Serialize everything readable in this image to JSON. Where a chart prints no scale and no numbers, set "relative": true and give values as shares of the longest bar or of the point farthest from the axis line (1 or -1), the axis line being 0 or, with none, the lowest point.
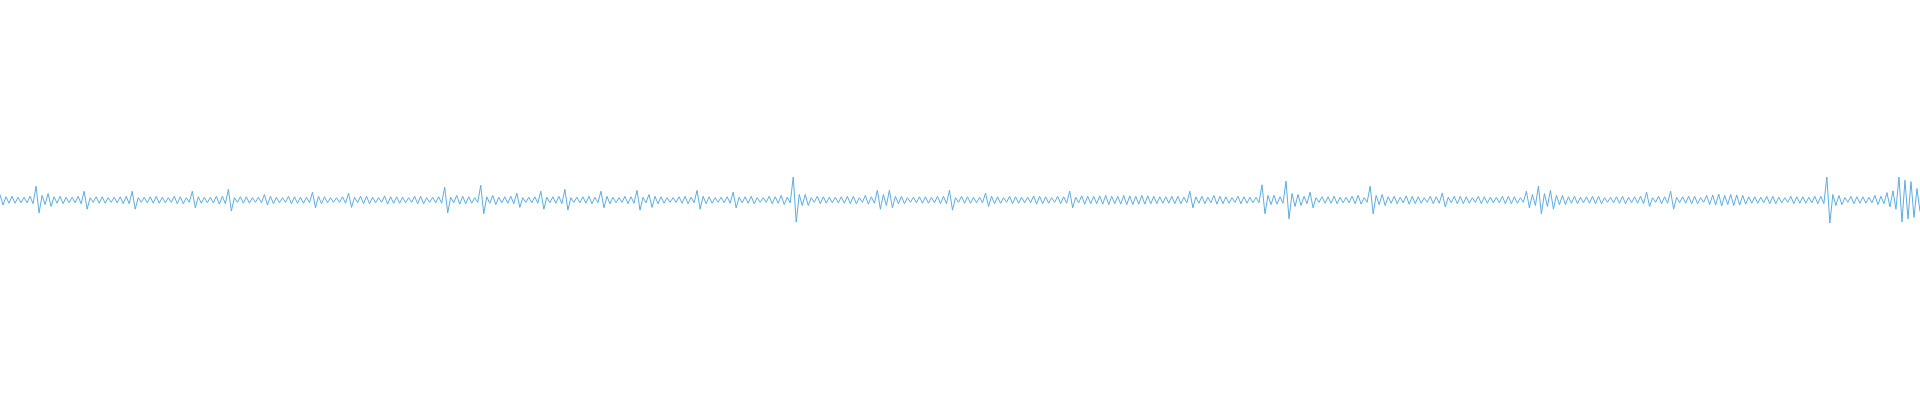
{
  "chart_data": {
    "type": "line",
    "relative": true,
    "color": "#5dade2",
    "categories": [
      null,
      null,
      null,
      null,
      null,
      null,
      null,
      null,
      null,
      null,
      null,
      null,
      null,
      null,
      null,
      null,
      null,
      null,
      null,
      null,
      null,
      null,
      null,
      null,
      null,
      null,
      null,
      null,
      null,
      null,
      null,
      null,
      null,
      null,
      null,
      null,
      null,
      null,
      null,
      null,
      null,
      null,
      null,
      null,
      null,
      null,
      null,
      null,
      null,
      null,
      null,
      null,
      null,
      null,
      null,
      null,
      null,
      null,
      null,
      null,
      null,
      null,
      null,
      null,
      null,
      null,
      null,
      null,
      null,
      null,
      null,
      null,
      null,
      null,
      null,
      null,
      null,
      null,
      null,
      null,
      null,
      null,
      null,
      null,
      null,
      null,
      null,
      null,
      null,
      null,
      null,
      null,
      null,
      null,
      null,
      null,
      null,
      null,
      null,
      null,
      null,
      null,
      null,
      null,
      null,
      null,
      null,
      null,
      null,
      null,
      null,
      null,
      null,
      null,
      null,
      null,
      null,
      null,
      null,
      null,
      null,
      null,
      null,
      null,
      null,
      null,
      null,
      null,
      null,
      null,
      null,
      null,
      null,
      null,
      null,
      null,
      null,
      null,
      null,
      null,
      null,
      null,
      null,
      null,
      null,
      null,
      null,
      null,
      null,
      null,
      null,
      null,
      null,
      null,
      null,
      null,
      null,
      null,
      null,
      null,
      null,
      null,
      null,
      null,
      null,
      null,
      null,
      null,
      null,
      null,
      null,
      null,
      null,
      null,
      null,
      null,
      null,
      null,
      null,
      null,
      null,
      null,
      null,
      null,
      null,
      null,
      null,
      null,
      null,
      null,
      null,
      null,
      null,
      null,
      null,
      null,
      null,
      null,
      null,
      null,
      null,
      null,
      null,
      null,
      null,
      null,
      null,
      null,
      null,
      null,
      null,
      null,
      null,
      null,
      null,
      null,
      null,
      null,
      null,
      null,
      null,
      null,
      null,
      null,
      null,
      null,
      null,
      null,
      null,
      null,
      null,
      null,
      null,
      null,
      null,
      null,
      null,
      null,
      null,
      null,
      null,
      null,
      null,
      null,
      null,
      null,
      null,
      null,
      null,
      null,
      null,
      null,
      null,
      null,
      null,
      null,
      null,
      null,
      null,
      null,
      null,
      null,
      null,
      null,
      null,
      null,
      null,
      null,
      null,
      null,
      null,
      null,
      null,
      null,
      null,
      null,
      null,
      null,
      null,
      null,
      null,
      null,
      null,
      null,
      null,
      null,
      null,
      null,
      null,
      null,
      null,
      null,
      null,
      null,
      null,
      null,
      null,
      null,
      null,
      null,
      null,
      null,
      null,
      null,
      null,
      null,
      null,
      null,
      null,
      null,
      null,
      null,
      null,
      null,
      null,
      null,
      null,
      null,
      null,
      null,
      null,
      null,
      null,
      null,
      null,
      null,
      null,
      null,
      null,
      null,
      null,
      null,
      null,
      null,
      null,
      null,
      null,
      null,
      null,
      null,
      null,
      null,
      null,
      null,
      null,
      null,
      null,
      null,
      null,
      null,
      null,
      null,
      null,
      null,
      null,
      null,
      null,
      null,
      null,
      null,
      null,
      null,
      null,
      null,
      null,
      null,
      null,
      null,
      null,
      null,
      null,
      null,
      null,
      null,
      null,
      null,
      null,
      null,
      null,
      null,
      null,
      null,
      null,
      null,
      null,
      null,
      null,
      null,
      null,
      null,
      null,
      null,
      null,
      null,
      null,
      null,
      null,
      null,
      null,
      null,
      null,
      null,
      null,
      null,
      null,
      null,
      null,
      null,
      null,
      null,
      null,
      null,
      null,
      null,
      null,
      null,
      null,
      null,
      null,
      null,
      null,
      null,
      null,
      null,
      null,
      null,
      null,
      null,
      null,
      null,
      null,
      null,
      null,
      null,
      null,
      null,
      null,
      null,
      null,
      null,
      null,
      null,
      null,
      null,
      null,
      null,
      null,
      null,
      null,
      null,
      null,
      null,
      null,
      null,
      null,
      null,
      null,
      null,
      null,
      null,
      null,
      null,
      null,
      null,
      null,
      null,
      null,
      null,
      null,
      null,
      null,
      null,
      null,
      null,
      null,
      null,
      null,
      null,
      null,
      null,
      null,
      null,
      null,
      null,
      null,
      null,
      null,
      null,
      null,
      null,
      null,
      null,
      null,
      null,
      null,
      null,
      null,
      null,
      null,
      null,
      null,
      null,
      null,
      null,
      null,
      null,
      null,
      null,
      null,
      null,
      null,
      null,
      null,
      null,
      null,
      null,
      null,
      null,
      null,
      null,
      null,
      null,
      null,
      null,
      null,
      null,
      null,
      null,
      null,
      null,
      null,
      null,
      null,
      null,
      null,
      null,
      null,
      null,
      null,
      null,
      null,
      null,
      null,
      null,
      null,
      null,
      null,
      null,
      null,
      null,
      null,
      null,
      null,
      null,
      null,
      null,
      null,
      null,
      null,
      null,
      null,
      null,
      null,
      null,
      null,
      null,
      null,
      null,
      null,
      null,
      null,
      null,
      null,
      null,
      null,
      null,
      null,
      null,
      null,
      null,
      null,
      null,
      null,
      null,
      null,
      null,
      null,
      null,
      null,
      null,
      null,
      null,
      null,
      null,
      null,
      null,
      null,
      null,
      null,
      null,
      null,
      null,
      null,
      null,
      null,
      null,
      null,
      null,
      null,
      null,
      null,
      null,
      null,
      null,
      null,
      null,
      null,
      null,
      null,
      null,
      null,
      null,
      null,
      null,
      null,
      null,
      null,
      null,
      null,
      null,
      null,
      null,
      null,
      null,
      null,
      null,
      null,
      null,
      null,
      null
    ],
    "values": [
      0.62,
      0.39,
      0.57,
      0.43,
      0.58,
      0.43,
      0.56,
      0.44,
      0.56,
      0.44,
      0.58,
      0.42,
      0.8,
      0.22,
      0.6,
      0.4,
      0.64,
      0.36,
      0.57,
      0.43,
      0.58,
      0.42,
      0.56,
      0.44,
      0.56,
      0.44,
      0.58,
      0.42,
      0.69,
      0.3,
      0.55,
      0.45,
      0.57,
      0.43,
      0.57,
      0.43,
      0.55,
      0.45,
      0.56,
      0.44,
      0.57,
      0.42,
      0.58,
      0.42,
      0.69,
      0.3,
      0.55,
      0.45,
      0.56,
      0.44,
      0.57,
      0.43,
      0.58,
      0.43,
      0.56,
      0.44,
      0.55,
      0.45,
      0.58,
      0.42,
      0.57,
      0.42,
      0.55,
      0.45,
      0.69,
      0.33,
      0.57,
      0.43,
      0.56,
      0.44,
      0.56,
      0.44,
      0.58,
      0.41,
      0.58,
      0.42,
      0.73,
      0.26,
      0.55,
      0.45,
      0.57,
      0.43,
      0.57,
      0.43,
      0.55,
      0.45,
      0.56,
      0.44,
      0.62,
      0.39,
      0.58,
      0.42,
      0.56,
      0.44,
      0.55,
      0.45,
      0.58,
      0.42,
      0.57,
      0.43,
      0.56,
      0.43,
      0.56,
      0.44,
      0.67,
      0.33,
      0.58,
      0.42,
      0.57,
      0.44,
      0.55,
      0.45,
      0.55,
      0.45,
      0.57,
      0.43,
      0.65,
      0.34,
      0.56,
      0.44,
      0.58,
      0.42,
      0.58,
      0.42,
      0.56,
      0.44,
      0.55,
      0.45,
      0.59,
      0.41,
      0.57,
      0.43,
      0.57,
      0.43,
      0.56,
      0.44,
      0.55,
      0.45,
      0.58,
      0.42,
      0.58,
      0.42,
      0.55,
      0.45,
      0.56,
      0.44,
      0.57,
      0.43,
      0.78,
      0.22,
      0.56,
      0.44,
      0.6,
      0.41,
      0.58,
      0.42,
      0.57,
      0.43,
      0.55,
      0.45,
      0.82,
      0.2,
      0.57,
      0.43,
      0.6,
      0.4,
      0.56,
      0.44,
      0.57,
      0.43,
      0.58,
      0.42,
      0.65,
      0.34,
      0.55,
      0.45,
      0.56,
      0.44,
      0.57,
      0.43,
      0.69,
      0.3,
      0.56,
      0.44,
      0.57,
      0.43,
      0.58,
      0.42,
      0.73,
      0.28,
      0.55,
      0.45,
      0.56,
      0.44,
      0.57,
      0.43,
      0.58,
      0.42,
      0.56,
      0.44,
      0.69,
      0.33,
      0.58,
      0.42,
      0.56,
      0.44,
      0.55,
      0.45,
      0.58,
      0.42,
      0.57,
      0.43,
      0.71,
      0.28,
      0.56,
      0.44,
      0.62,
      0.34,
      0.58,
      0.42,
      0.57,
      0.43,
      0.55,
      0.45,
      0.55,
      0.45,
      0.57,
      0.43,
      0.58,
      0.42,
      0.56,
      0.44,
      0.71,
      0.3,
      0.58,
      0.42,
      0.57,
      0.43,
      0.55,
      0.45,
      0.56,
      0.44,
      0.57,
      0.43,
      0.67,
      0.33,
      0.56,
      0.44,
      0.57,
      0.43,
      0.58,
      0.42,
      0.55,
      0.45,
      0.55,
      0.45,
      0.58,
      0.42,
      0.57,
      0.43,
      0.6,
      0.4,
      0.56,
      0.44,
      1,
      0.02,
      0.62,
      0.38,
      0.62,
      0.38,
      0.55,
      0.45,
      0.58,
      0.42,
      0.57,
      0.43,
      0.56,
      0.44,
      0.56,
      0.44,
      0.57,
      0.43,
      0.58,
      0.42,
      0.58,
      0.42,
      0.55,
      0.45,
      0.6,
      0.41,
      0.57,
      0.43,
      0.71,
      0.3,
      0.62,
      0.38,
      0.71,
      0.33,
      0.58,
      0.42,
      0.58,
      0.42,
      0.55,
      0.45,
      0.56,
      0.44,
      0.57,
      0.43,
      0.57,
      0.43,
      0.56,
      0.44,
      0.58,
      0.42,
      0.58,
      0.42,
      0.71,
      0.28,
      0.55,
      0.45,
      0.58,
      0.43,
      0.57,
      0.43,
      0.56,
      0.44,
      0.56,
      0.44,
      0.65,
      0.36,
      0.58,
      0.42,
      0.57,
      0.43,
      0.55,
      0.45,
      0.58,
      0.42,
      0.57,
      0.43,
      0.56,
      0.44,
      0.56,
      0.44,
      0.59,
      0.41,
      0.58,
      0.42,
      0.57,
      0.43,
      0.55,
      0.45,
      0.58,
      0.42,
      0.57,
      0.43,
      0.69,
      0.33,
      0.56,
      0.44,
      0.59,
      0.41,
      0.58,
      0.42,
      0.58,
      0.42,
      0.59,
      0.41,
      0.6,
      0.4,
      0.58,
      0.42,
      0.58,
      0.41,
      0.6,
      0.4,
      0.59,
      0.4,
      0.58,
      0.41,
      0.6,
      0.41,
      0.59,
      0.42,
      0.58,
      0.42,
      0.57,
      0.43,
      0.57,
      0.43,
      0.58,
      0.42,
      0.58,
      0.42,
      0.56,
      0.44,
      0.69,
      0.33,
      0.57,
      0.43,
      0.58,
      0.42,
      0.56,
      0.44,
      0.6,
      0.41,
      0.58,
      0.42,
      0.57,
      0.43,
      0.55,
      0.45,
      0.58,
      0.42,
      0.57,
      0.43,
      0.56,
      0.44,
      0.56,
      0.44,
      0.83,
      0.2,
      0.6,
      0.4,
      0.6,
      0.41,
      0.57,
      0.43,
      0.91,
      0.09,
      0.64,
      0.36,
      0.62,
      0.38,
      0.58,
      0.42,
      0.67,
      0.33,
      0.55,
      0.45,
      0.57,
      0.43,
      0.57,
      0.43,
      0.58,
      0.42,
      0.56,
      0.44,
      0.56,
      0.44,
      0.58,
      0.42,
      0.6,
      0.41,
      0.55,
      0.45,
      0.8,
      0.2,
      0.6,
      0.4,
      0.62,
      0.38,
      0.57,
      0.43,
      0.58,
      0.42,
      0.56,
      0.44,
      0.59,
      0.41,
      0.58,
      0.42,
      0.57,
      0.43,
      0.55,
      0.45,
      0.58,
      0.42,
      0.57,
      0.43,
      0.65,
      0.35,
      0.56,
      0.44,
      0.58,
      0.42,
      0.58,
      0.42,
      0.57,
      0.43,
      0.55,
      0.45,
      0.58,
      0.42,
      0.57,
      0.43,
      0.56,
      0.44,
      0.56,
      0.44,
      0.58,
      0.42,
      0.58,
      0.42,
      0.57,
      0.43,
      0.55,
      0.45,
      0.69,
      0.33,
      0.62,
      0.38,
      0.8,
      0.2,
      0.64,
      0.36,
      0.71,
      0.3,
      0.6,
      0.4,
      0.6,
      0.4,
      0.57,
      0.43,
      0.58,
      0.42,
      0.56,
      0.44,
      0.57,
      0.43,
      0.58,
      0.42,
      0.58,
      0.42,
      0.55,
      0.45,
      0.56,
      0.44,
      0.57,
      0.43,
      0.58,
      0.42,
      0.56,
      0.44,
      0.57,
      0.43,
      0.58,
      0.42,
      0.67,
      0.36,
      0.55,
      0.45,
      0.58,
      0.42,
      0.57,
      0.43,
      0.69,
      0.3,
      0.56,
      0.44,
      0.57,
      0.43,
      0.58,
      0.42,
      0.58,
      0.42,
      0.55,
      0.45,
      0.6,
      0.4,
      0.61,
      0.39,
      0.63,
      0.37,
      0.6,
      0.4,
      0.62,
      0.38,
      0.61,
      0.39,
      0.6,
      0.41,
      0.57,
      0.43,
      0.57,
      0.43,
      0.56,
      0.44,
      0.58,
      0.42,
      0.58,
      0.42,
      0.56,
      0.44,
      0.55,
      0.45,
      0.58,
      0.42,
      0.57,
      0.43,
      0.57,
      0.43,
      0.56,
      0.44,
      0.58,
      0.42,
      0.58,
      0.42,
      1,
      0,
      0.62,
      0.38,
      0.6,
      0.4,
      0.55,
      0.45,
      0.58,
      0.42,
      0.57,
      0.43,
      0.57,
      0.43,
      0.56,
      0.44,
      0.6,
      0.4,
      0.58,
      0.42,
      0.66,
      0.35,
      0.7,
      0.3,
      1,
      0.02,
      0.93,
      0.09,
      0.9,
      0.12,
      0.75,
      0.25
    ]
  }
}
